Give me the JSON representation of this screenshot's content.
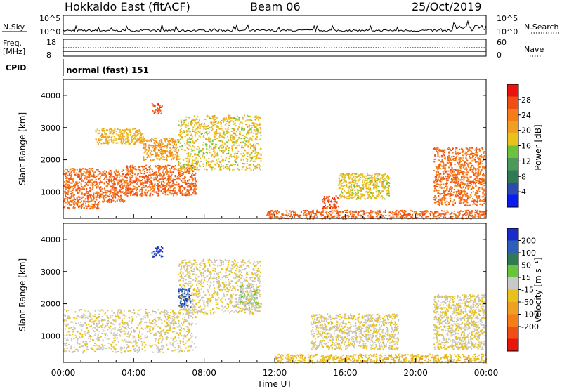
{
  "header": {
    "title": "Hokkaido East (fitACF)",
    "beam": "Beam 06",
    "date": "25/Oct/2019"
  },
  "nsky_panel": {
    "left_label": "N.Sky",
    "left_ticks": [
      "10^5",
      "10^0"
    ],
    "right_label": "N.Search",
    "right_ticks": [
      "10^5",
      "10^0"
    ]
  },
  "freq_panel": {
    "left_label_1": "Freq.",
    "left_label_2": "[MHz]",
    "left_ticks": [
      "18",
      "8"
    ],
    "right_label": "Nave",
    "right_ticks": [
      "60",
      "0"
    ]
  },
  "cpid_panel": {
    "label": "CPID",
    "mode": "normal (fast) 151"
  },
  "power_panel": {
    "ylabel": "Slant Range [km]",
    "colorbar_label": "Power [dB]"
  },
  "velocity_panel": {
    "ylabel": "Slant Range [km]",
    "colorbar_label": "Velocity [m s⁻¹]"
  },
  "xlabel": "Time UT",
  "colors": {
    "power": [
      "#0a1cf0",
      "#2b4bb0",
      "#2f7a55",
      "#4c9a5a",
      "#6cc23a",
      "#e8c21a",
      "#f0a020",
      "#f57d18",
      "#f04e14",
      "#e8140e"
    ],
    "velocity": [
      "#1a2cc8",
      "#2e5fb8",
      "#2f7a55",
      "#68c43a",
      "#c8c8c8",
      "#e8c21a",
      "#f0a020",
      "#f57d18",
      "#f04e14",
      "#e8140e"
    ],
    "grey": "#c8c8c8"
  },
  "chart_data": [
    {
      "type": "heatmap",
      "title": "Power",
      "xlabel": "Time UT",
      "ylabel": "Slant Range [km]",
      "xlim": [
        0,
        24
      ],
      "ylim": [
        180,
        4500
      ],
      "x_ticks": [
        "00:00",
        "04:00",
        "08:00",
        "12:00",
        "16:00",
        "20:00",
        "00:00"
      ],
      "y_ticks": [
        1000,
        2000,
        3000,
        4000
      ],
      "colorbar": {
        "label": "Power [dB]",
        "range": [
          0,
          32
        ],
        "ticks": [
          4,
          8,
          12,
          16,
          20,
          24,
          28
        ]
      },
      "regions": [
        {
          "t0": 0.0,
          "t1": 2.0,
          "r0": 500,
          "r1": 1750,
          "value": 26
        },
        {
          "t0": 2.0,
          "t1": 3.5,
          "r0": 700,
          "r1": 1700,
          "value": 27
        },
        {
          "t0": 3.5,
          "t1": 7.5,
          "r0": 900,
          "r1": 1850,
          "value": 27
        },
        {
          "t0": 1.8,
          "t1": 4.5,
          "r0": 2500,
          "r1": 3000,
          "value": 20
        },
        {
          "t0": 4.5,
          "t1": 6.5,
          "r0": 2000,
          "r1": 2700,
          "value": 22
        },
        {
          "t0": 6.5,
          "t1": 11.2,
          "r0": 1700,
          "r1": 3400,
          "value": 18
        },
        {
          "t0": 5.0,
          "t1": 5.6,
          "r0": 3450,
          "r1": 3800,
          "value": 28
        },
        {
          "t0": 11.5,
          "t1": 24.0,
          "r0": 180,
          "r1": 450,
          "value": 27
        },
        {
          "t0": 14.6,
          "t1": 15.6,
          "r0": 500,
          "r1": 900,
          "value": 28
        },
        {
          "t0": 15.6,
          "t1": 18.5,
          "r0": 800,
          "r1": 1600,
          "value": 18
        },
        {
          "t0": 21.0,
          "t1": 23.9,
          "r0": 600,
          "r1": 2400,
          "value": 26
        }
      ]
    },
    {
      "type": "heatmap",
      "title": "Velocity",
      "xlabel": "Time UT",
      "ylabel": "Slant Range [km]",
      "xlim": [
        0,
        24
      ],
      "ylim": [
        180,
        4500
      ],
      "x_ticks": [
        "00:00",
        "04:00",
        "08:00",
        "12:00",
        "16:00",
        "20:00",
        "00:00"
      ],
      "y_ticks": [
        1000,
        2000,
        3000,
        4000
      ],
      "colorbar": {
        "label": "Velocity [m s⁻¹]",
        "range": [
          -250,
          250
        ],
        "ticks": [
          200,
          100,
          50,
          15,
          -15,
          -50,
          -100,
          -200
        ]
      },
      "regions": [
        {
          "t0": 0.0,
          "t1": 7.5,
          "r0": 500,
          "r1": 1850,
          "value": 0
        },
        {
          "t0": 6.5,
          "t1": 11.2,
          "r0": 1700,
          "r1": 3400,
          "value": 0
        },
        {
          "t0": 5.0,
          "t1": 5.6,
          "r0": 3450,
          "r1": 3800,
          "value": 200
        },
        {
          "t0": 6.5,
          "t1": 7.2,
          "r0": 1900,
          "r1": 2500,
          "value": 180
        },
        {
          "t0": 10.0,
          "t1": 11.0,
          "r0": 1800,
          "r1": 2600,
          "value": 40
        },
        {
          "t0": 14.0,
          "t1": 19.0,
          "r0": 600,
          "r1": 1700,
          "value": 0
        },
        {
          "t0": 12.0,
          "t1": 24.0,
          "r0": 180,
          "r1": 450,
          "value": -40
        },
        {
          "t0": 21.0,
          "t1": 23.9,
          "r0": 600,
          "r1": 2300,
          "value": 0
        }
      ]
    }
  ]
}
